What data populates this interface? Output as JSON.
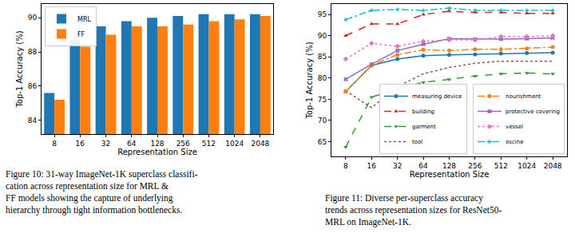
{
  "chart_data": [
    {
      "type": "bar",
      "x_label": "Representation Size",
      "y_label": "Top-1 Accuracy (%)",
      "categories": [
        "8",
        "16",
        "32",
        "64",
        "128",
        "256",
        "512",
        "1024",
        "2048"
      ],
      "series": [
        {
          "name": "MRL",
          "color": "#1f77b4",
          "values": [
            85.6,
            88.7,
            89.5,
            89.8,
            90.0,
            90.1,
            90.2,
            90.2,
            90.2
          ]
        },
        {
          "name": "FF",
          "color": "#ff7f0e",
          "values": [
            85.2,
            88.3,
            89.0,
            89.5,
            89.5,
            89.6,
            89.8,
            89.9,
            90.1
          ]
        }
      ],
      "ylim": [
        83.2,
        90.8
      ],
      "yticks": [
        84,
        86,
        88,
        90
      ],
      "grid": false,
      "legend": "upper left",
      "caption": [
        "Figure 10: 31-way ImageNet-1K superclass classifi-",
        "cation across representation size for MRL &",
        "FF models showing the capture of underlying",
        "hierarchy through tight information bottlenecks."
      ]
    },
    {
      "type": "line",
      "x_label": "Representation Size",
      "y_label": "Top-1 Accuracy (%)",
      "categories": [
        "8",
        "16",
        "32",
        "64",
        "128",
        "256",
        "512",
        "1024",
        "2048"
      ],
      "series": [
        {
          "name": "measuring device",
          "color": "#1f77b4",
          "line_style": "solid",
          "marker": "circle",
          "values": [
            76.8,
            83.0,
            84.5,
            85.3,
            85.5,
            85.6,
            85.8,
            85.9,
            86.0
          ]
        },
        {
          "name": "building",
          "color": "#d62728",
          "line_style": "dash",
          "marker": "triangle-up",
          "values": [
            90.0,
            92.8,
            92.8,
            95.0,
            95.8,
            95.5,
            95.5,
            95.3,
            95.3
          ]
        },
        {
          "name": "garment",
          "color": "#2ca02c",
          "line_style": "dash",
          "marker": "triangle-down",
          "values": [
            63.7,
            75.5,
            77.5,
            79.0,
            79.7,
            80.5,
            81.0,
            81.2,
            81.0
          ]
        },
        {
          "name": "tool",
          "color": "#8c564b",
          "line_style": "dot",
          "marker": "none",
          "values": [
            77.0,
            73.0,
            78.0,
            81.0,
            82.5,
            83.5,
            84.0,
            84.0,
            84.0
          ]
        },
        {
          "name": "nourishment",
          "color": "#ff7f0e",
          "line_style": "dashdot",
          "marker": "circle",
          "values": [
            76.8,
            83.0,
            85.5,
            86.7,
            86.5,
            86.8,
            86.8,
            87.0,
            87.3
          ]
        },
        {
          "name": "protective covering",
          "color": "#9467bd",
          "line_style": "solid",
          "marker": "x",
          "values": [
            79.7,
            83.3,
            86.5,
            88.0,
            89.3,
            89.2,
            89.2,
            89.3,
            89.5
          ]
        },
        {
          "name": "vessel",
          "color": "#e377c2",
          "line_style": "dot",
          "marker": "diamond",
          "values": [
            84.5,
            88.2,
            87.5,
            88.7,
            89.0,
            89.0,
            89.8,
            89.8,
            90.0
          ]
        },
        {
          "name": "oscine",
          "color": "#17becf",
          "line_style": "dashdot",
          "marker": "star",
          "values": [
            93.8,
            96.0,
            96.2,
            96.0,
            96.5,
            96.0,
            96.0,
            96.0,
            96.0
          ]
        }
      ],
      "ylim": [
        61.5,
        97.5
      ],
      "yticks": [
        65,
        70,
        75,
        80,
        85,
        90,
        95
      ],
      "grid": false,
      "legend": "lower right",
      "caption": [
        "Figure 11: Diverse per-superclass accuracy",
        "trends across representation sizes for ResNet50-",
        "MRL on ImageNet-1K."
      ]
    }
  ]
}
